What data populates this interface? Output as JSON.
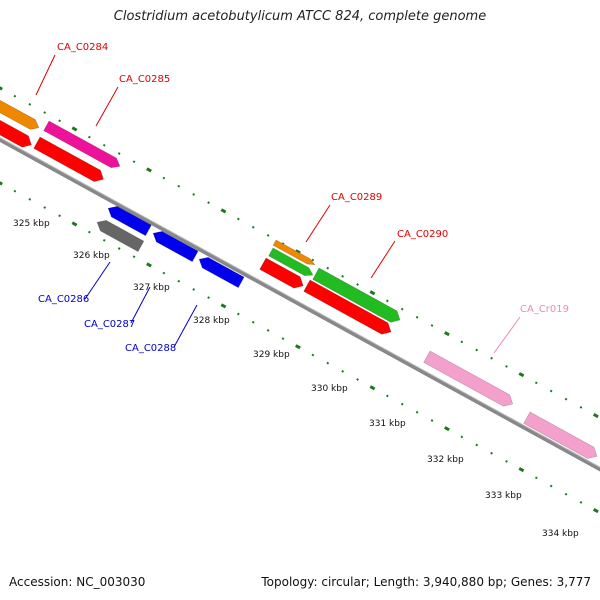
{
  "title": "Clostridium acetobutylicum ATCC 824, complete genome",
  "footer": {
    "accession": "Accession: NC_003030",
    "topology": "Topology: circular; Length: 3,940,880 bp; Genes: 3,777"
  },
  "colors": {
    "backbone": "#888888",
    "ticks": "#1a7a1a",
    "label_red": "#dd0000",
    "label_blue": "#0000cc",
    "label_pink": "#ee88bb"
  },
  "ticks": [
    {
      "kbp": 325,
      "label": "325 kbp"
    },
    {
      "kbp": 326,
      "label": "326 kbp"
    },
    {
      "kbp": 327,
      "label": "327 kbp"
    },
    {
      "kbp": 328,
      "label": "328 kbp"
    },
    {
      "kbp": 329,
      "label": "329 kbp"
    },
    {
      "kbp": 330,
      "label": "330 kbp"
    },
    {
      "kbp": 331,
      "label": "331 kbp"
    },
    {
      "kbp": 332,
      "label": "332 kbp"
    },
    {
      "kbp": 333,
      "label": "333 kbp"
    },
    {
      "kbp": 334,
      "label": "334 kbp"
    }
  ],
  "genes": [
    {
      "label": "CA_C0284",
      "strand": "forward",
      "color": "#ee8800",
      "label_color": "#dd0000"
    },
    {
      "label": "CA_C0285",
      "strand": "forward",
      "color": "#ee1199",
      "label_color": "#dd0000"
    },
    {
      "label": "CA_C0286",
      "strand": "reverse",
      "color": "#666666",
      "label_color": "#0000cc"
    },
    {
      "label": "CA_C0287",
      "strand": "reverse",
      "color": "#0000ee",
      "label_color": "#0000cc"
    },
    {
      "label": "CA_C0288",
      "strand": "reverse",
      "color": "#0000ee",
      "label_color": "#0000cc"
    },
    {
      "label": "CA_C0289",
      "strand": "forward",
      "color": "#ee8800",
      "label_color": "#dd0000"
    },
    {
      "label": "CA_C0290",
      "strand": "forward",
      "color": "#22bb22",
      "label_color": "#dd0000"
    },
    {
      "label": "CA_Cr019",
      "strand": "forward",
      "color": "#f4a0cc",
      "label_color": "#ee88bb"
    }
  ]
}
